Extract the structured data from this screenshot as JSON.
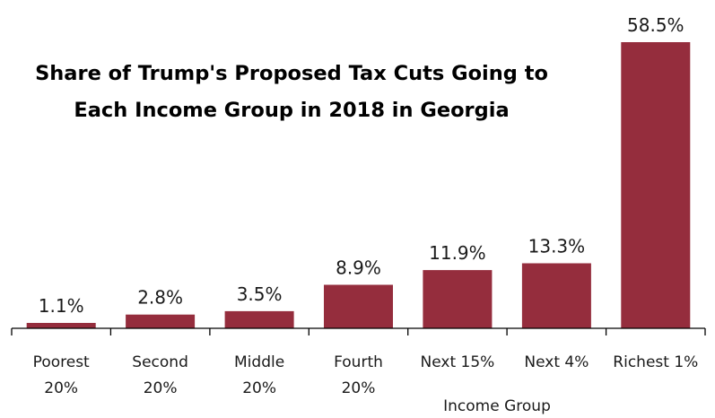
{
  "chart_data": {
    "type": "bar",
    "title_lines": [
      "Share of Trump's Proposed Tax Cuts Going to",
      "Each Income Group in 2018 in Georgia"
    ],
    "xlabel": "Income Group",
    "ylabel": "",
    "categories": [
      [
        "Poorest",
        "20%"
      ],
      [
        "Second",
        "20%"
      ],
      [
        "Middle",
        "20%"
      ],
      [
        "Fourth",
        "20%"
      ],
      [
        "Next 15%"
      ],
      [
        "Next 4%"
      ],
      [
        "Richest 1%"
      ]
    ],
    "values": [
      1.1,
      2.8,
      3.5,
      8.9,
      11.9,
      13.3,
      58.5
    ],
    "data_labels": [
      "1.1%",
      "2.8%",
      "3.5%",
      "8.9%",
      "11.9%",
      "13.3%",
      "58.5%"
    ],
    "ylim": [
      0,
      58.5
    ],
    "bar_color": "#952D3D",
    "grid": false,
    "legend": "none"
  }
}
